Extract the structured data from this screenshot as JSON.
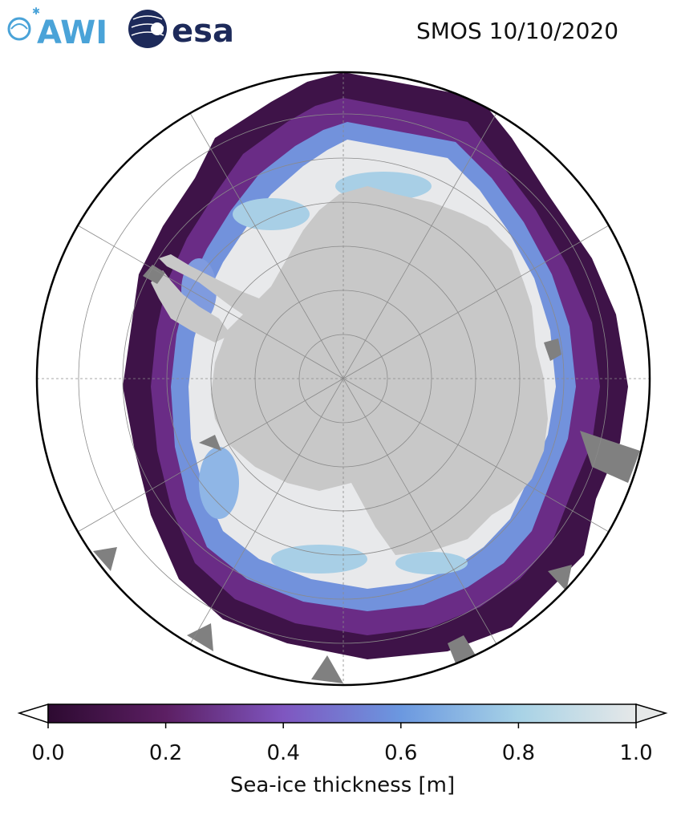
{
  "title": "SMOS 10/10/2020",
  "logos": {
    "awi": "AWI",
    "esa": "esa"
  },
  "map": {
    "projection": "south-polar-stereographic",
    "region": "Antarctica / Southern Ocean",
    "colors": {
      "land": "#c8c8c8",
      "ice_shelf_or_missing": "#808080",
      "ocean": "#ffffff",
      "grid": "#8a8a8a"
    }
  },
  "colorbar": {
    "label": "Sea-ice thickness [m]",
    "ticks": [
      "0.0",
      "0.2",
      "0.4",
      "0.6",
      "0.8",
      "1.0"
    ],
    "min": 0.0,
    "max": 1.0,
    "extend": "both",
    "colors": [
      "#2d0a31",
      "#5c1f63",
      "#7f56c0",
      "#6b98e0",
      "#a7d2e6",
      "#e6e8e8"
    ]
  }
}
